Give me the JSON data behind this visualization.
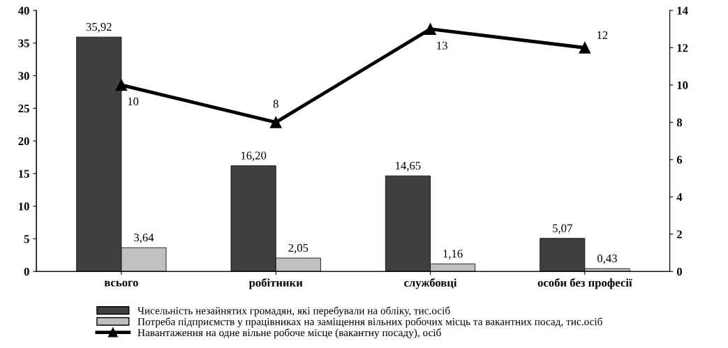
{
  "chart_data": {
    "type": "bar",
    "categories": [
      "всього",
      "робітники",
      "службовці",
      "особи без професії"
    ],
    "series": [
      {
        "name": "Чисельність незайнятих громадян, які перебували на обліку, тис.осіб",
        "color": "#404040",
        "values": [
          35.92,
          16.2,
          14.65,
          5.07
        ],
        "value_labels": [
          "35,92",
          "16,20",
          "14,65",
          "5,07"
        ]
      },
      {
        "name": "Потреба підприємств у працівниках на заміщення вільних робочих місць та вакантних посад, тис.осіб",
        "color": "#c0c0c0",
        "values": [
          3.64,
          2.05,
          1.16,
          0.43
        ],
        "value_labels": [
          "3,64",
          "2,05",
          "1,16",
          "0,43"
        ]
      },
      {
        "name": "Навантаження на одне вільне робоче місце (вакантну посаду), осіб",
        "type": "line",
        "axis": "y2",
        "color": "#000000",
        "marker": "triangle",
        "values": [
          10,
          8,
          13,
          12
        ],
        "value_labels": [
          "10",
          "8",
          "13",
          "12"
        ]
      }
    ],
    "ylim": [
      0,
      40
    ],
    "yticks": [
      0,
      5,
      10,
      15,
      20,
      25,
      30,
      35,
      40
    ],
    "y2lim": [
      0,
      14
    ],
    "y2ticks": [
      0,
      2,
      4,
      6,
      8,
      10,
      12,
      14
    ],
    "grid": false,
    "legend": "bottom"
  }
}
